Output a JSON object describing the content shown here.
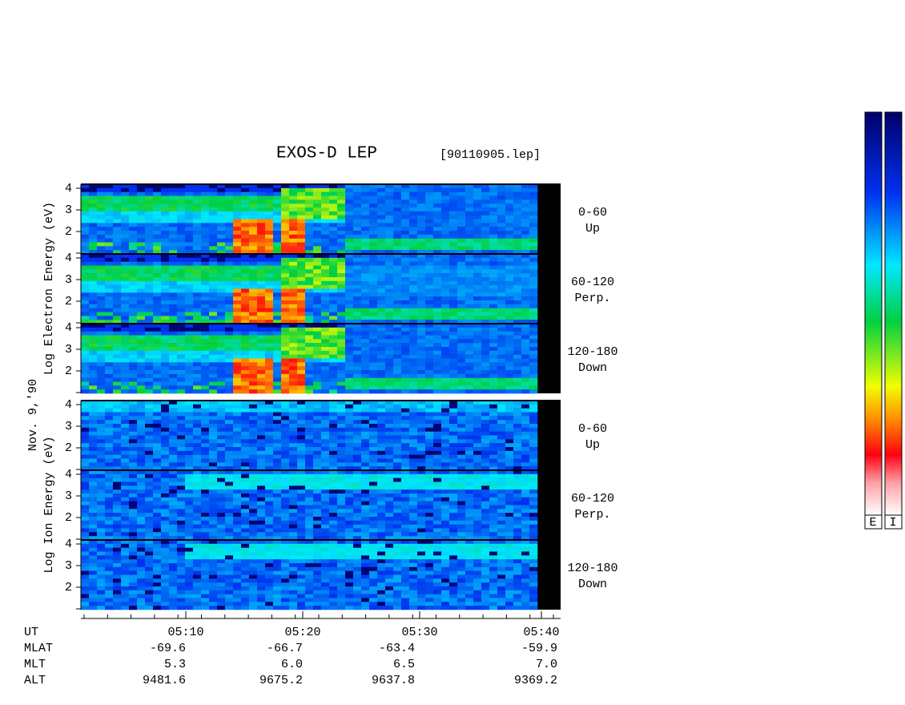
{
  "header": {
    "title": "EXOS-D LEP",
    "file": "[90110905.lep]",
    "date": "Nov. 9,'90"
  },
  "electron_axis_label": "Log  Electron  Energy (eV)",
  "ion_axis_label": "Log  Ion  Energy (eV)",
  "panel_yticks": [
    4,
    3,
    2
  ],
  "pitch_labels": [
    [
      "0-60",
      "Up"
    ],
    [
      "60-120",
      "Perp."
    ],
    [
      "120-180",
      "Down"
    ]
  ],
  "time_axis": {
    "rows": [
      [
        "UT",
        "05:10",
        "05:20",
        "05:30",
        "05:40"
      ],
      [
        "MLAT",
        "-69.6",
        "-66.7",
        "-63.4",
        "-59.9"
      ],
      [
        "MLT",
        "5.3",
        "6.0",
        "6.5",
        "7.0"
      ],
      [
        "ALT",
        "9481.6",
        "9675.2",
        "9637.8",
        "9369.2"
      ]
    ]
  },
  "colorbar_labels": [
    "E",
    "I"
  ]
}
